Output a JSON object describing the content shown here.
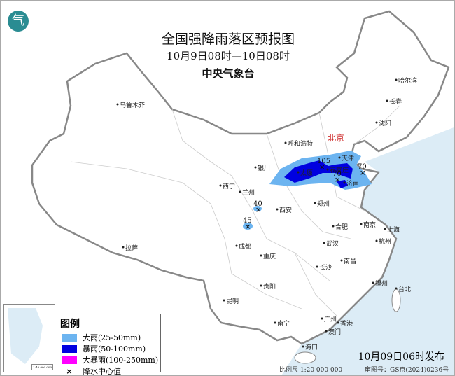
{
  "header": {
    "title": "全国强降雨落区预报图",
    "period": "10月9日08时—10日08时",
    "agency": "中央气象台"
  },
  "colors": {
    "heavy_rain": "#6cb4f0",
    "rainstorm": "#0000e0",
    "heavy_rainstorm": "#ff00ff",
    "sea": "#dcecf6",
    "land": "#ffffff",
    "capital": "#d03030"
  },
  "cities": [
    {
      "name": "乌鲁木齐"
    },
    {
      "name": "哈尔滨"
    },
    {
      "name": "长春"
    },
    {
      "name": "沈阳"
    },
    {
      "name": "呼和浩特"
    },
    {
      "name": "北京",
      "capital": true
    },
    {
      "name": "天津"
    },
    {
      "name": "银川"
    },
    {
      "name": "西宁"
    },
    {
      "name": "兰州"
    },
    {
      "name": "太原"
    },
    {
      "name": "石家庄"
    },
    {
      "name": "济南"
    },
    {
      "name": "郑州"
    },
    {
      "name": "西安"
    },
    {
      "name": "合肥"
    },
    {
      "name": "南京"
    },
    {
      "name": "上海"
    },
    {
      "name": "成都"
    },
    {
      "name": "武汉"
    },
    {
      "name": "杭州"
    },
    {
      "name": "重庆"
    },
    {
      "name": "拉萨"
    },
    {
      "name": "长沙"
    },
    {
      "name": "南昌"
    },
    {
      "name": "福州"
    },
    {
      "name": "台北"
    },
    {
      "name": "贵阳"
    },
    {
      "name": "昆明"
    },
    {
      "name": "南宁"
    },
    {
      "name": "广州"
    },
    {
      "name": "香港"
    },
    {
      "name": "澳门"
    },
    {
      "name": "海口"
    }
  ],
  "rain_centers": [
    {
      "value": "105"
    },
    {
      "value": "70"
    },
    {
      "value": "70"
    },
    {
      "value": "40"
    },
    {
      "value": "45"
    }
  ],
  "legend": {
    "title": "图例",
    "items": [
      {
        "label": "大雨(25-50mm)",
        "color": "#6cb4f0"
      },
      {
        "label": "暴雨(50-100mm)",
        "color": "#0000e0"
      },
      {
        "label": "大暴雨(100-250mm)",
        "color": "#ff00ff"
      }
    ],
    "center_label": "降水中心值",
    "center_symbol": "×"
  },
  "footer": {
    "issued": "10月09日06时发布",
    "scale": "比例尺 1:20 000 000",
    "map_number": "审图号：GS京(2024)0236号"
  },
  "inset": {
    "scale": "1:40 000 000"
  },
  "logo": {
    "symbol": "气"
  }
}
